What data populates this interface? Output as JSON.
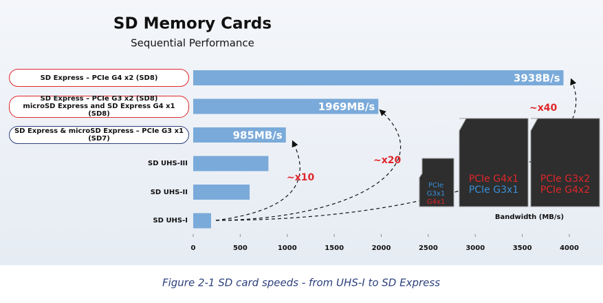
{
  "chart_data": {
    "type": "barh",
    "title": "SD Memory Cards",
    "subtitle": "Sequential Performance",
    "categories": [
      "SD Express – PCIe G4 x2 (SD8)",
      "SD Express – PCIe G3 x2 (SD8)\nmicroSD Express and SD Express G4 x1 (SD8)",
      "SD Express & microSD Express – PCIe G3 x1 (SD7)",
      "SD UHS-III",
      "SD UHS-II",
      "SD UHS-I"
    ],
    "values": [
      3938,
      1969,
      985,
      800,
      600,
      190
    ],
    "value_labels": [
      "3938B/s",
      "1969MB/s",
      "985MB/s",
      null,
      null,
      null
    ],
    "color": "#7aaad9",
    "category_outlines": [
      "#e0262a",
      "#e0262a",
      "#2b3f7c",
      null,
      null,
      null
    ],
    "xlim": [
      0,
      4000
    ],
    "xticks": [
      0,
      500,
      1000,
      1500,
      2000,
      2500,
      3000,
      3500,
      4000
    ],
    "xlabel": "Bandwidth (MB/s)",
    "annotations": [
      "~x10",
      "~x20",
      "~x40"
    ],
    "cards": {
      "micro": [
        "PCIe",
        "G3x1",
        "G4x1"
      ],
      "card1": [
        "PCIe G4x1",
        "PCIe G3x1"
      ],
      "card2": [
        "PCIe G3x2",
        "PCIe G4x2"
      ]
    },
    "caption": "Figure 2-1  SD card speeds - from UHS-I to SD Express"
  }
}
